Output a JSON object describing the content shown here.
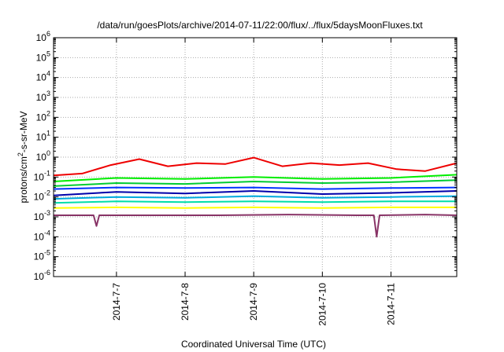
{
  "chart_data": {
    "type": "line",
    "title": "/data/run/goesPlots/archive/2014-07-11/22:00/flux/../flux/5daysMoonFluxes.txt",
    "xlabel": "Coordinated Universal Time (UTC)",
    "ylabel": {
      "prefix": "protons/cm",
      "sup": "2",
      "suffix": "-s-sr-MeV"
    },
    "yscale": "log",
    "ylim": [
      1e-06,
      1000000.0
    ],
    "yticks": [
      {
        "base": "10",
        "exp": "-6"
      },
      {
        "base": "10",
        "exp": "-5"
      },
      {
        "base": "10",
        "exp": "-4"
      },
      {
        "base": "10",
        "exp": "-3"
      },
      {
        "base": "10",
        "exp": "-2"
      },
      {
        "base": "10",
        "exp": "-1"
      },
      {
        "base": "10",
        "exp": "0"
      },
      {
        "base": "10",
        "exp": "1"
      },
      {
        "base": "10",
        "exp": "2"
      },
      {
        "base": "10",
        "exp": "3"
      },
      {
        "base": "10",
        "exp": "4"
      },
      {
        "base": "10",
        "exp": "5"
      },
      {
        "base": "10",
        "exp": "6"
      }
    ],
    "xlim": [
      "2014-07-06 02:00",
      "2014-07-11 23:00"
    ],
    "xticks": [
      {
        "label": "2014-7-7",
        "date": "2014-07-07"
      },
      {
        "label": "2014-7-8",
        "date": "2014-07-08"
      },
      {
        "label": "2014-7-9",
        "date": "2014-07-09"
      },
      {
        "label": "2014-7-10",
        "date": "2014-07-10"
      },
      {
        "label": "2014-7-11",
        "date": "2014-07-11"
      }
    ],
    "grid": true,
    "grid_style": "dotted",
    "series": [
      {
        "color": "#ee0000",
        "x": [
          "2014-07-06 02:00",
          "2014-07-06 12:00",
          "2014-07-06 22:00",
          "2014-07-07 08:00",
          "2014-07-07 18:00",
          "2014-07-08 04:00",
          "2014-07-08 14:00",
          "2014-07-09 00:00",
          "2014-07-09 10:00",
          "2014-07-09 20:00",
          "2014-07-10 06:00",
          "2014-07-10 16:00",
          "2014-07-11 02:00",
          "2014-07-11 12:00",
          "2014-07-11 23:00"
        ],
        "y": [
          0.12,
          0.15,
          0.4,
          0.8,
          0.35,
          0.5,
          0.45,
          0.95,
          0.35,
          0.5,
          0.4,
          0.5,
          0.25,
          0.2,
          0.5
        ]
      },
      {
        "color": "#00ee00",
        "x": [
          "2014-07-06 02:00",
          "2014-07-07 00:00",
          "2014-07-08 00:00",
          "2014-07-09 00:00",
          "2014-07-10 00:00",
          "2014-07-11 00:00",
          "2014-07-11 23:00"
        ],
        "y": [
          0.06,
          0.09,
          0.08,
          0.1,
          0.08,
          0.09,
          0.13
        ]
      },
      {
        "color": "#00cc33",
        "x": [
          "2014-07-06 02:00",
          "2014-07-07 00:00",
          "2014-07-08 00:00",
          "2014-07-09 00:00",
          "2014-07-10 00:00",
          "2014-07-11 00:00",
          "2014-07-11 23:00"
        ],
        "y": [
          0.035,
          0.05,
          0.045,
          0.06,
          0.05,
          0.055,
          0.07
        ]
      },
      {
        "color": "#0033ff",
        "x": [
          "2014-07-06 02:00",
          "2014-07-07 00:00",
          "2014-07-08 00:00",
          "2014-07-09 00:00",
          "2014-07-10 00:00",
          "2014-07-11 00:00",
          "2014-07-11 23:00"
        ],
        "y": [
          0.025,
          0.03,
          0.028,
          0.03,
          0.025,
          0.028,
          0.03
        ]
      },
      {
        "color": "#0000aa",
        "x": [
          "2014-07-06 02:00",
          "2014-07-07 00:00",
          "2014-07-08 00:00",
          "2014-07-09 00:00",
          "2014-07-10 00:00",
          "2014-07-11 00:00",
          "2014-07-11 23:00"
        ],
        "y": [
          0.012,
          0.018,
          0.015,
          0.02,
          0.014,
          0.016,
          0.02
        ]
      },
      {
        "color": "#00aadd",
        "x": [
          "2014-07-06 02:00",
          "2014-07-07 00:00",
          "2014-07-08 00:00",
          "2014-07-09 00:00",
          "2014-07-10 00:00",
          "2014-07-11 00:00",
          "2014-07-11 23:00"
        ],
        "y": [
          0.008,
          0.01,
          0.009,
          0.011,
          0.009,
          0.01,
          0.011
        ]
      },
      {
        "color": "#00ddaa",
        "x": [
          "2014-07-06 02:00",
          "2014-07-07 00:00",
          "2014-07-08 00:00",
          "2014-07-09 00:00",
          "2014-07-10 00:00",
          "2014-07-11 00:00",
          "2014-07-11 23:00"
        ],
        "y": [
          0.005,
          0.006,
          0.0055,
          0.006,
          0.0055,
          0.006,
          0.006
        ]
      },
      {
        "color": "#ffff00",
        "x": [
          "2014-07-06 02:00",
          "2014-07-07 00:00",
          "2014-07-08 00:00",
          "2014-07-09 00:00",
          "2014-07-10 00:00",
          "2014-07-11 00:00",
          "2014-07-11 23:00"
        ],
        "y": [
          0.0028,
          0.003,
          0.0028,
          0.003,
          0.0028,
          0.003,
          0.003
        ]
      },
      {
        "color": "#883366",
        "x": [
          "2014-07-06 02:00",
          "2014-07-06 16:00",
          "2014-07-06 17:00",
          "2014-07-06 18:00",
          "2014-07-07 12:00",
          "2014-07-08 12:00",
          "2014-07-09 12:00",
          "2014-07-10 12:00",
          "2014-07-10 18:00",
          "2014-07-10 19:00",
          "2014-07-10 20:00",
          "2014-07-11 12:00",
          "2014-07-11 23:00"
        ],
        "y": [
          0.0012,
          0.0012,
          0.00035,
          0.0012,
          0.0012,
          0.0012,
          0.0013,
          0.0012,
          0.0012,
          0.0001,
          0.0012,
          0.0013,
          0.0012
        ]
      }
    ]
  }
}
